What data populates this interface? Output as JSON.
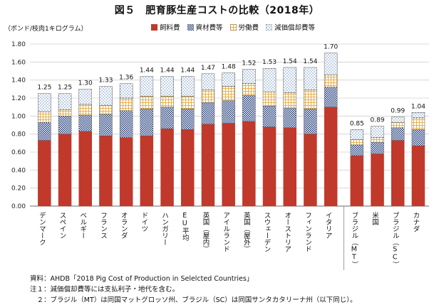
{
  "chart_data": {
    "type": "bar",
    "stacked": true,
    "title": "図５　肥育豚生産コストの比較（2018年）",
    "ylabel": "（ポンド/枝肉1キログラム）",
    "ylim": [
      0,
      1.8
    ],
    "yticks": [
      "0.00",
      "0.20",
      "0.40",
      "0.60",
      "0.80",
      "1.00",
      "1.20",
      "1.40",
      "1.60",
      "1.80"
    ],
    "grid": true,
    "legend_position": "top",
    "categories": [
      "デンマーク",
      "スペイン",
      "ベルギー",
      "フランス",
      "オランダ",
      "ドイツ",
      "ハンガリー",
      "EU平均",
      "英国（屋内）",
      "アイルランド",
      "英国（屋外）",
      "スウェーデン",
      "オーストリア",
      "フィンランド",
      "イタリア",
      "ブラジル（MT）",
      "米国",
      "ブラジル（SC）",
      "カナダ"
    ],
    "groups": [
      15,
      4
    ],
    "totals": [
      "1.25",
      "1.25",
      "1.30",
      "1.33",
      "1.36",
      "1.44",
      "1.44",
      "1.44",
      "1.47",
      "1.48",
      "1.52",
      "1.53",
      "1.54",
      "1.54",
      "1.70",
      "0.85",
      "0.89",
      "0.99",
      "1.04"
    ],
    "series": [
      {
        "name": "飼料費",
        "color": "#c0392b",
        "pattern": "solid",
        "values": [
          0.73,
          0.8,
          0.83,
          0.78,
          0.76,
          0.78,
          0.86,
          0.85,
          0.91,
          0.92,
          0.94,
          0.88,
          0.87,
          0.8,
          1.1,
          0.56,
          0.58,
          0.73,
          0.67
        ]
      },
      {
        "name": "資材費等",
        "color": "#1f3a7a",
        "pattern": "checker",
        "values": [
          0.2,
          0.2,
          0.18,
          0.24,
          0.3,
          0.3,
          0.24,
          0.23,
          0.24,
          0.25,
          0.29,
          0.23,
          0.22,
          0.28,
          0.22,
          0.12,
          0.13,
          0.14,
          0.18
        ]
      },
      {
        "name": "労働費",
        "color": "#e8b04a",
        "pattern": "grid",
        "values": [
          0.12,
          0.07,
          0.12,
          0.1,
          0.14,
          0.14,
          0.12,
          0.14,
          0.14,
          0.16,
          0.13,
          0.16,
          0.17,
          0.21,
          0.14,
          0.06,
          0.05,
          0.06,
          0.13
        ]
      },
      {
        "name": "減価償却費等",
        "color": "#6aa0d8",
        "pattern": "dots",
        "values": [
          0.2,
          0.18,
          0.17,
          0.21,
          0.16,
          0.22,
          0.22,
          0.22,
          0.18,
          0.15,
          0.16,
          0.26,
          0.28,
          0.25,
          0.24,
          0.11,
          0.13,
          0.06,
          0.06
        ]
      }
    ]
  },
  "notes": {
    "source": "資料：AHDB「2018 Pig Cost of Production in Selelcted Countries」",
    "note1": "注１：減価償却費等には支払利子・地代を含む。",
    "note2": "　２：ブラジル（MT）は同国マットグロッソ州、ブラジル（SC）は同国サンタカタリーナ州（以下同じ）。"
  }
}
